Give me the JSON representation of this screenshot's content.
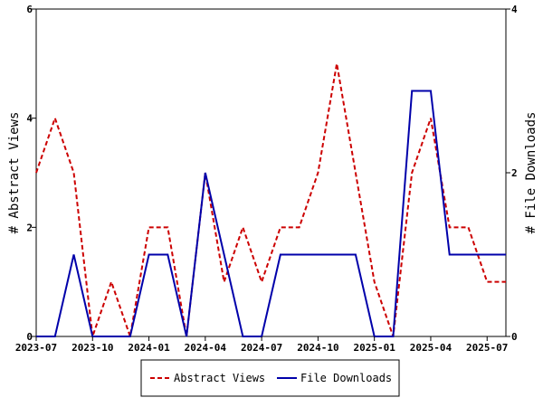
{
  "chart_data": {
    "type": "line",
    "title": "",
    "x": [
      "2023-07",
      "2023-08",
      "2023-09",
      "2023-10",
      "2023-11",
      "2023-12",
      "2024-01",
      "2024-02",
      "2024-03",
      "2024-04",
      "2024-05",
      "2024-06",
      "2024-07",
      "2024-08",
      "2024-09",
      "2024-10",
      "2024-11",
      "2024-12",
      "2025-01",
      "2025-02",
      "2025-03",
      "2025-04",
      "2025-05",
      "2025-06",
      "2025-07",
      "2025-08"
    ],
    "x_ticks": [
      "2023-07",
      "2023-10",
      "2024-01",
      "2024-04",
      "2024-07",
      "2024-10",
      "2025-01",
      "2025-04",
      "2025-07"
    ],
    "y_left": {
      "label": "# Abstract Views",
      "ylim": [
        0,
        6
      ],
      "ticks": [
        "0",
        "2",
        "4",
        "6"
      ]
    },
    "y_right": {
      "label": "# File Downloads",
      "ylim": [
        0,
        4
      ],
      "ticks": [
        "0",
        "2",
        "4"
      ]
    },
    "series": [
      {
        "name": "Abstract Views",
        "axis": "left",
        "color": "#cc0000",
        "dash": "dashed",
        "values": [
          3,
          4,
          3,
          0,
          1,
          0,
          2,
          2,
          0,
          3,
          1,
          2,
          1,
          2,
          2,
          3,
          5,
          3,
          1,
          0,
          3,
          4,
          2,
          2,
          1,
          1
        ]
      },
      {
        "name": "File Downloads",
        "axis": "right",
        "color": "#0000aa",
        "dash": "solid",
        "values": [
          0,
          0,
          1,
          0,
          0,
          0,
          1,
          1,
          0,
          2,
          1,
          0,
          0,
          1,
          1,
          1,
          1,
          1,
          0,
          0,
          3,
          3,
          1,
          1,
          1,
          1
        ]
      }
    ],
    "grid": false,
    "legend": "bottom-center"
  }
}
